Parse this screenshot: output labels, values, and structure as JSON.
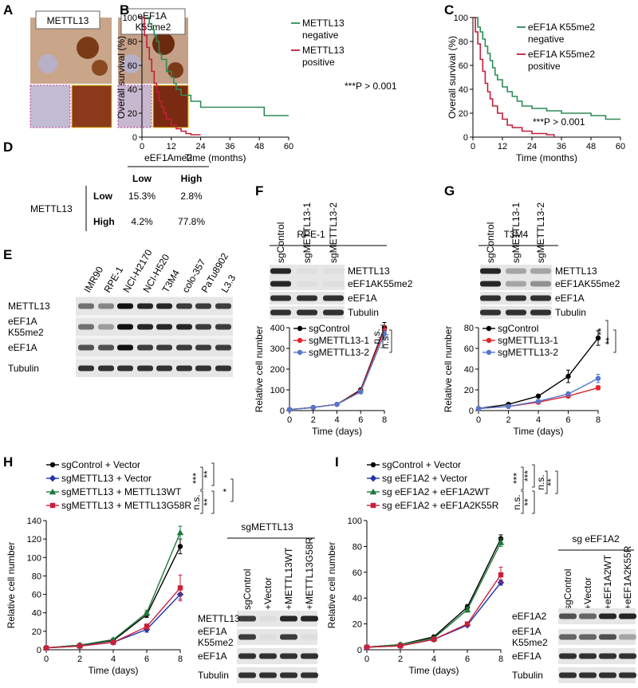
{
  "panel_labels": [
    "A",
    "B",
    "C",
    "D",
    "E",
    "F",
    "G",
    "H",
    "I"
  ],
  "panel_a": {
    "labels": [
      "METTL13",
      "eEF1A K55me2"
    ]
  },
  "panel_d": {
    "column_header": "eEF1Ame2",
    "columns": [
      "Low",
      "High"
    ],
    "row_header": "METTL13",
    "rows": [
      [
        "Low",
        "15.3%",
        "2.8%"
      ],
      [
        "High",
        "4.2%",
        "77.8%"
      ]
    ]
  },
  "panel_e": {
    "lanes": [
      "IMR90",
      "RPE-1",
      "NCI-H2170",
      "NCI-H520",
      "T3M4",
      "colo-357",
      "PaTu8902",
      "L3.3"
    ],
    "rows": [
      "METTL13",
      "eEF1A K55me2",
      "eEF1A",
      "Tubulin"
    ]
  },
  "panel_f_blot": {
    "title": "RPE-1",
    "lanes": [
      "sgControl",
      "sgMETTL13-1",
      "sgMETTL13-2"
    ],
    "rows": [
      "METTL13",
      "eEF1AK55me2",
      "eEF1A",
      "Tubulin"
    ]
  },
  "panel_g_blot": {
    "title": "T3M4",
    "lanes": [
      "sgControl",
      "sgMETTL13-1",
      "sgMETTL13-2"
    ],
    "rows": [
      "METTL13",
      "eEF1AK55me2",
      "eEF1A",
      "Tubulin"
    ]
  },
  "panel_h_blot": {
    "title": "sgMETTL13",
    "lanes": [
      "sgControl",
      "+Vector",
      "+METTL13WT",
      "+METTL13G58R"
    ],
    "rows": [
      "METTL13",
      "eEF1A K55me2",
      "eEF1A",
      "Tubulin"
    ]
  },
  "panel_i_blot": {
    "title": "sg eEF1A2",
    "lanes": [
      "sgControl",
      "+Vector",
      "+eEF1A2WT",
      "+eEF1A2K55R"
    ],
    "rows": [
      "eEF1A2",
      "eEF1A K55me2",
      "eEF1A",
      "Tubulin"
    ]
  },
  "chart_data": [
    {
      "type": "step",
      "xlabel": "Time (months)",
      "ylabel": "Overall survival (%)",
      "xlim": [
        0,
        60
      ],
      "xticks": [
        0,
        12,
        24,
        36,
        48,
        60
      ],
      "ylim": [
        0,
        100
      ],
      "yticks": [
        0,
        20,
        40,
        60,
        80,
        100
      ],
      "annotations": [
        "***P > 0.001"
      ],
      "series": [
        {
          "name": "METTL13 negative",
          "color": "#2e8b57",
          "x": [
            0,
            3,
            4,
            5,
            6,
            7,
            8,
            10,
            12,
            13,
            14,
            16,
            20,
            24,
            48,
            50,
            60
          ],
          "values": [
            100,
            95,
            90,
            85,
            80,
            70,
            65,
            55,
            50,
            45,
            40,
            35,
            30,
            25,
            25,
            18,
            18
          ]
        },
        {
          "name": "METTL13 positive",
          "color": "#c41e3a",
          "x": [
            0,
            1,
            2,
            3,
            4,
            5,
            6,
            7,
            8,
            9,
            10,
            12,
            14,
            16,
            18,
            20,
            24
          ],
          "values": [
            100,
            85,
            75,
            65,
            55,
            45,
            38,
            30,
            25,
            20,
            15,
            10,
            7,
            5,
            3,
            2,
            2
          ]
        }
      ]
    },
    {
      "type": "step",
      "xlabel": "Time (months)",
      "ylabel": "Overall survival (%)",
      "xlim": [
        0,
        60
      ],
      "xticks": [
        0,
        12,
        24,
        36,
        48,
        60
      ],
      "ylim": [
        0,
        100
      ],
      "yticks": [
        0,
        20,
        40,
        60,
        80,
        100
      ],
      "annotations": [
        "***P > 0.001"
      ],
      "series": [
        {
          "name": "eEF1A K55me2 negative",
          "color": "#2e8b57",
          "x": [
            0,
            2,
            3,
            4,
            5,
            6,
            7,
            8,
            9,
            10,
            12,
            14,
            16,
            18,
            20,
            24,
            30,
            36,
            48,
            54,
            60
          ],
          "values": [
            100,
            92,
            88,
            82,
            76,
            70,
            64,
            58,
            52,
            48,
            42,
            38,
            34,
            30,
            26,
            24,
            22,
            20,
            18,
            15,
            15
          ]
        },
        {
          "name": "eEF1A K55me2 positive",
          "color": "#c41e3a",
          "x": [
            0,
            1,
            2,
            3,
            4,
            5,
            6,
            7,
            8,
            10,
            12,
            14,
            16,
            20,
            24,
            30,
            33
          ],
          "values": [
            100,
            88,
            78,
            65,
            55,
            45,
            38,
            32,
            26,
            20,
            15,
            10,
            8,
            5,
            3,
            2,
            0
          ]
        }
      ]
    },
    {
      "type": "line",
      "xlabel": "Time (days)",
      "ylabel": "Relative cell number",
      "x": [
        0,
        2,
        4,
        6,
        8
      ],
      "xlim": [
        0,
        8
      ],
      "xticks": [
        0,
        2,
        4,
        6,
        8
      ],
      "ylim": [
        0,
        400
      ],
      "yticks": [
        0,
        100,
        200,
        300,
        400
      ],
      "annotations": [
        "n.s.",
        "n.s."
      ],
      "series": [
        {
          "name": "sgControl",
          "color": "#000000",
          "marker": "circle",
          "values": [
            5,
            15,
            30,
            100,
            400
          ],
          "errors": [
            1,
            2,
            3,
            8,
            25
          ]
        },
        {
          "name": "sgMETTL13-1",
          "color": "#e3242b",
          "marker": "circle",
          "values": [
            5,
            15,
            30,
            95,
            390
          ],
          "errors": [
            1,
            2,
            3,
            8,
            20
          ]
        },
        {
          "name": "sgMETTL13-2",
          "color": "#5577cc",
          "marker": "circle",
          "values": [
            5,
            15,
            30,
            90,
            370
          ],
          "errors": [
            1,
            2,
            3,
            8,
            20
          ]
        }
      ]
    },
    {
      "type": "line",
      "xlabel": "Time (days)",
      "ylabel": "Relative cell number",
      "x": [
        0,
        2,
        4,
        6,
        8
      ],
      "xlim": [
        0,
        8
      ],
      "xticks": [
        0,
        2,
        4,
        6,
        8
      ],
      "ylim": [
        0,
        80
      ],
      "yticks": [
        0,
        20,
        40,
        60,
        80
      ],
      "annotations": [
        "**",
        "**"
      ],
      "series": [
        {
          "name": "sgControl",
          "color": "#000000",
          "marker": "circle",
          "values": [
            2,
            6,
            14,
            33,
            70
          ],
          "errors": [
            0.5,
            1,
            1.5,
            6,
            7
          ]
        },
        {
          "name": "sgMETTL13-1",
          "color": "#e3242b",
          "marker": "circle",
          "values": [
            2,
            4,
            8,
            14,
            22
          ],
          "errors": [
            0.5,
            0.5,
            1,
            1.5,
            2
          ]
        },
        {
          "name": "sgMETTL13-2",
          "color": "#5577cc",
          "marker": "circle",
          "values": [
            2,
            4,
            9,
            16,
            31
          ],
          "errors": [
            0.5,
            0.5,
            1,
            2,
            4
          ]
        }
      ]
    },
    {
      "type": "line",
      "xlabel": "Time (days)",
      "ylabel": "Relative cell number",
      "x": [
        0,
        2,
        4,
        6,
        8
      ],
      "xlim": [
        0,
        8
      ],
      "xticks": [
        0,
        2,
        4,
        6,
        8
      ],
      "ylim": [
        0,
        140
      ],
      "yticks": [
        0,
        20,
        40,
        60,
        80,
        100,
        120,
        140
      ],
      "annotations": [
        "***",
        "n.s.",
        "**",
        "**",
        "*"
      ],
      "series": [
        {
          "name": "sgControl + Vector",
          "color": "#000000",
          "marker": "circle",
          "values": [
            2,
            5,
            10,
            38,
            112
          ],
          "errors": [
            1,
            1,
            1.5,
            3,
            8
          ]
        },
        {
          "name": "sgMETTL13 + Vector",
          "color": "#2233aa",
          "marker": "diamond",
          "values": [
            2,
            4,
            8,
            22,
            60
          ],
          "errors": [
            1,
            1,
            1.5,
            3,
            5
          ]
        },
        {
          "name": "sgMETTL13 + METTL13WT",
          "color": "#1e7a3c",
          "marker": "triangle",
          "values": [
            2,
            5,
            11,
            40,
            127
          ],
          "errors": [
            1,
            1,
            1.5,
            3,
            7
          ]
        },
        {
          "name": "sgMETTL13 + METTL13G58R",
          "color": "#c8203a",
          "marker": "square",
          "values": [
            2,
            4,
            8,
            25,
            67
          ],
          "errors": [
            1,
            1,
            1.5,
            3,
            14
          ]
        }
      ]
    },
    {
      "type": "line",
      "xlabel": "Time (days)",
      "ylabel": "Relative cell number",
      "x": [
        0,
        2,
        4,
        6,
        8
      ],
      "xlim": [
        0,
        8
      ],
      "xticks": [
        0,
        2,
        4,
        6,
        8
      ],
      "ylim": [
        0,
        100
      ],
      "yticks": [
        0,
        20,
        40,
        60,
        80,
        100
      ],
      "annotations": [
        "***",
        "n.s.",
        "***",
        "**",
        "n.s.",
        "**"
      ],
      "series": [
        {
          "name": "sgControl + Vector",
          "color": "#000000",
          "marker": "circle",
          "values": [
            2,
            4,
            10,
            33,
            86
          ],
          "errors": [
            1,
            1,
            1,
            2,
            3
          ]
        },
        {
          "name": "sg eEF1A2 + Vector",
          "color": "#2233aa",
          "marker": "diamond",
          "values": [
            2,
            3,
            8,
            19,
            52
          ],
          "errors": [
            1,
            1,
            1,
            1,
            2
          ]
        },
        {
          "name": "sg eEF1A2 + eEF1A2WT",
          "color": "#1e7a3c",
          "marker": "triangle",
          "values": [
            2,
            4,
            9,
            31,
            83
          ],
          "errors": [
            1,
            1,
            1,
            2,
            3
          ]
        },
        {
          "name": "sg eEF1A2 + eEF1A2K55R",
          "color": "#c8203a",
          "marker": "square",
          "values": [
            2,
            3,
            8,
            20,
            58
          ],
          "errors": [
            1,
            1,
            1,
            1,
            6
          ]
        }
      ]
    }
  ]
}
